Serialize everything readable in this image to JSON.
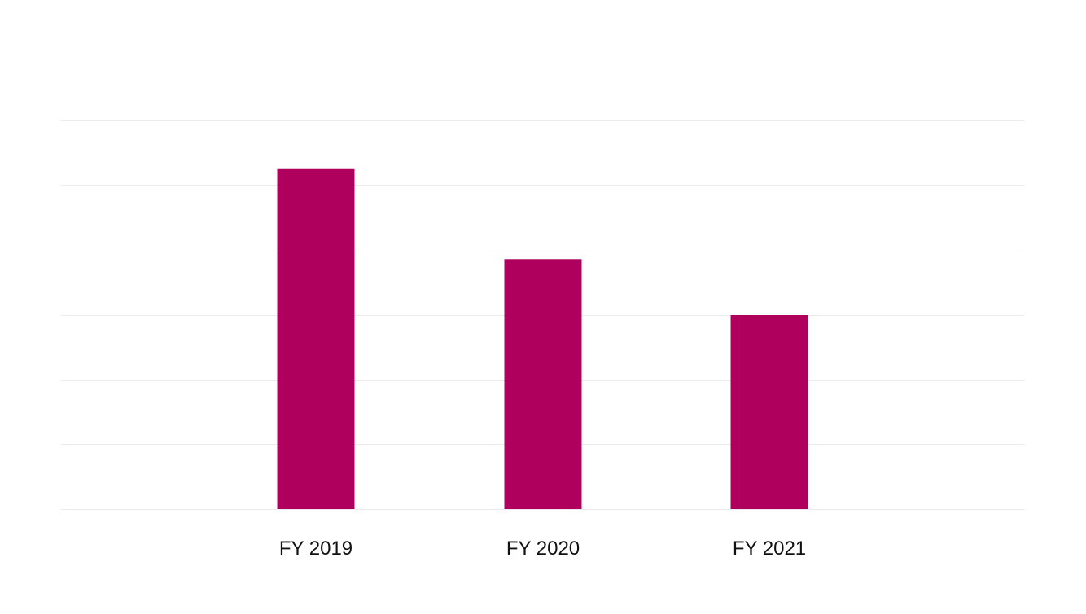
{
  "chart_data": {
    "type": "bar",
    "categories": [
      "FY 2019",
      "FY 2020",
      "FY 2021"
    ],
    "values": [
      5.25,
      3.85,
      3.0
    ],
    "ylim": [
      0,
      6
    ],
    "title": "",
    "xlabel": "",
    "ylabel": "",
    "grid": true,
    "legend": "none",
    "colors": {
      "bar": "#b0005e",
      "grid": "#ebebeb",
      "text": "#111111"
    }
  }
}
